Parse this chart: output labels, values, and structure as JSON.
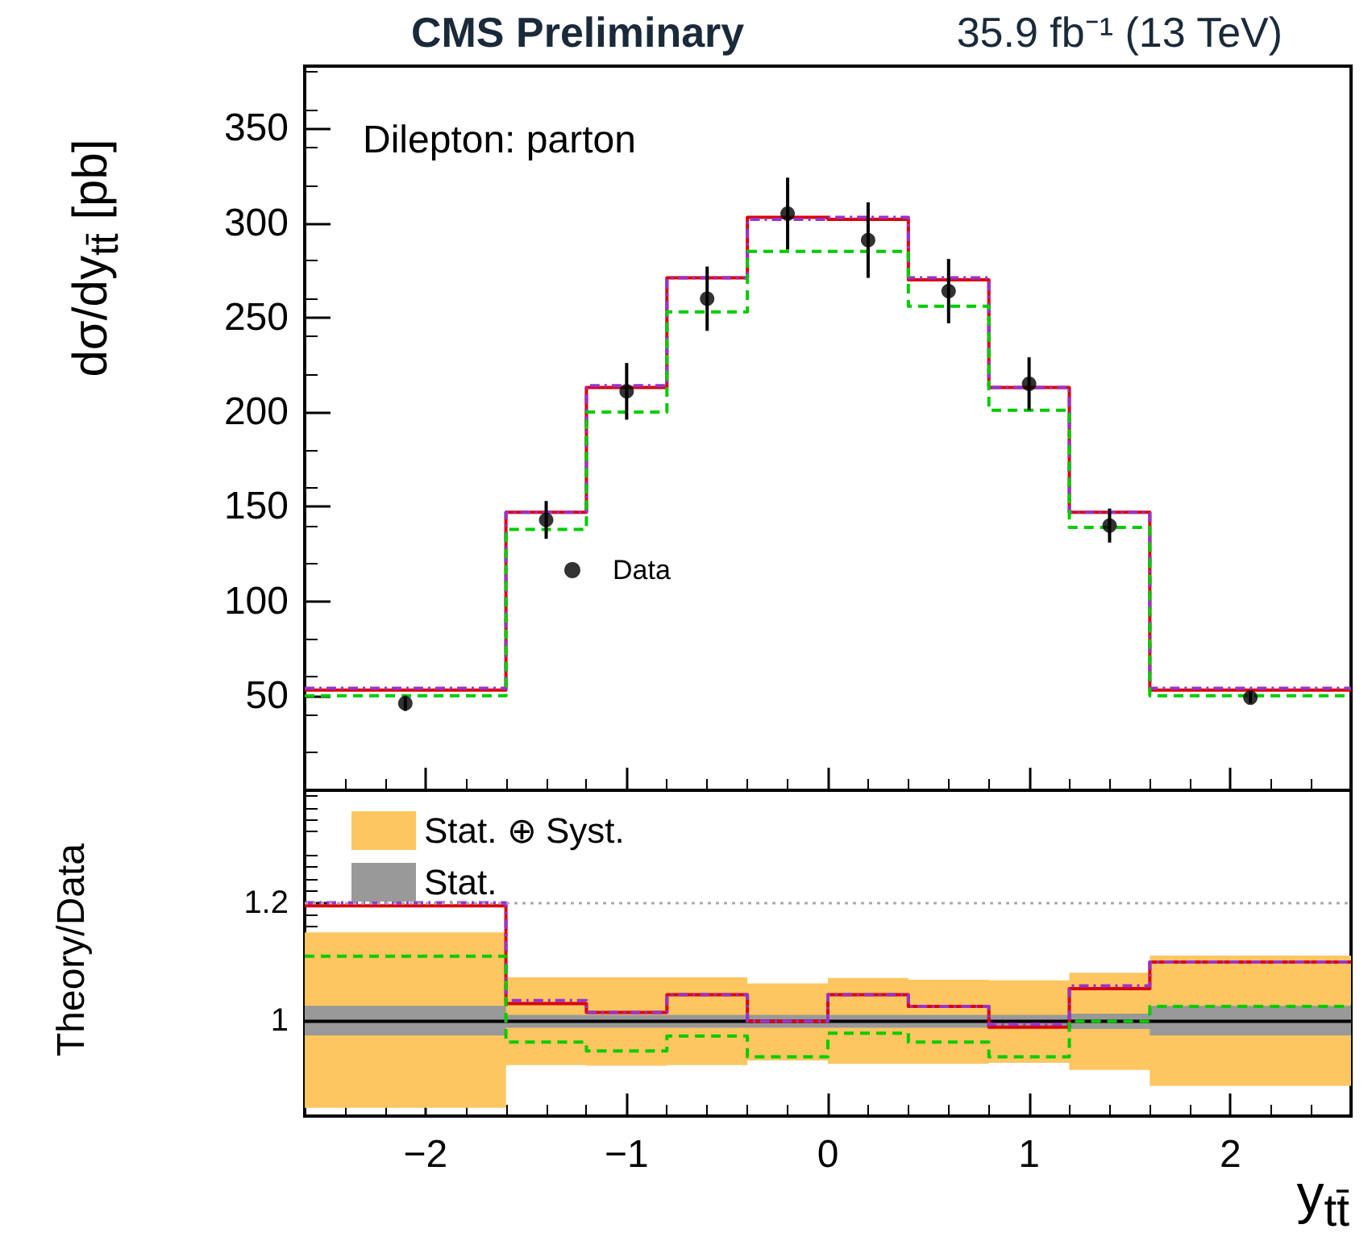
{
  "chart_data": [
    {
      "type": "scatter",
      "title": "CMS Preliminary",
      "subtitle": "35.9 fb⁻¹ (13 TeV)",
      "ylabel": "dσ/dy$_{tt̄}$ [pb]",
      "annotations": [
        "Dilepton: parton"
      ],
      "x": [
        -2.1,
        -1.4,
        -1.0,
        -0.6,
        -0.2,
        0.2,
        0.6,
        1.0,
        1.4,
        2.1
      ],
      "series": [
        {
          "name": "Data",
          "color": "#000000",
          "marker": "circle",
          "values": [
            46,
            143,
            211,
            260,
            305,
            291,
            264,
            215,
            140,
            49
          ],
          "errors": [
            4,
            10,
            15,
            17,
            19,
            20,
            17,
            14,
            9,
            3
          ]
        },
        {
          "type": "step",
          "color": "#dd0000",
          "line_style": "solid",
          "x": [
            -2.6,
            -1.6,
            -1.2,
            -0.8,
            -0.4,
            0,
            0.4,
            0.8,
            1.2,
            1.6,
            2.6
          ],
          "values": [
            53,
            147,
            213,
            271,
            303,
            302,
            270,
            213,
            147,
            53,
            53
          ]
        },
        {
          "type": "step",
          "color": "#9933cc",
          "line_style": "dotted",
          "x": [
            -2.6,
            -1.6,
            -1.2,
            -0.8,
            -0.4,
            0,
            0.4,
            0.8,
            1.2,
            1.6,
            2.6
          ],
          "values": [
            54,
            147,
            214,
            271,
            302,
            303,
            271,
            213,
            147,
            54,
            54
          ]
        },
        {
          "type": "step",
          "color": "#00cc00",
          "line_style": "dashed",
          "x": [
            -2.6,
            -1.6,
            -1.2,
            -0.8,
            -0.4,
            0,
            0.4,
            0.8,
            1.2,
            1.6,
            2.6
          ],
          "values": [
            50,
            138,
            200,
            253,
            285,
            285,
            256,
            201,
            139,
            50,
            50
          ]
        }
      ],
      "xlim": [
        -2.6,
        2.6
      ],
      "xticks": [
        -2,
        -1,
        0,
        1,
        2
      ],
      "ylim": [
        0,
        383
      ],
      "yticks": [
        50,
        100,
        150,
        200,
        250,
        300,
        350
      ],
      "tick_labels": "y",
      "legend": "bottom",
      "grid": false
    },
    {
      "type": "step",
      "xlabel": "y$_{tt̄}$",
      "ylabel": "Theory/Data",
      "x": [
        -2.6,
        -1.6,
        -1.2,
        -0.8,
        -0.4,
        0,
        0.4,
        0.8,
        1.2,
        1.6,
        2.6
      ],
      "series": [
        {
          "name": "Stat. ⊕ Syst.",
          "color": "#fdc660",
          "values": [
            null,
            null,
            null,
            null,
            null,
            null,
            null,
            null,
            null,
            null,
            null
          ],
          "lower": [
            0.854,
            0.926,
            0.925,
            0.926,
            0.934,
            0.928,
            0.928,
            0.93,
            0.918,
            0.891,
            0.891
          ],
          "upper": [
            1.15,
            1.074,
            1.074,
            1.074,
            1.064,
            1.073,
            1.07,
            1.069,
            1.082,
            1.111,
            1.111
          ]
        },
        {
          "name": "Stat.",
          "color": "#999999",
          "values": [
            null,
            null,
            null,
            null,
            null,
            null,
            null,
            null,
            null,
            null,
            null
          ],
          "lower": [
            0.976,
            0.989,
            0.989,
            0.989,
            0.989,
            0.989,
            0.989,
            0.989,
            0.987,
            0.976,
            0.976
          ],
          "upper": [
            1.026,
            1.011,
            1.011,
            1.011,
            1.011,
            1.011,
            1.011,
            1.011,
            1.013,
            1.026,
            1.026
          ]
        },
        {
          "color": "#000000",
          "line_style": "solid",
          "values": [
            1,
            1,
            1,
            1,
            1,
            1,
            1,
            1,
            1,
            1,
            1
          ]
        },
        {
          "color": "#dd0000",
          "line_style": "solid",
          "values": [
            1.195,
            1.03,
            1.015,
            1.045,
            1.0,
            1.045,
            1.025,
            0.99,
            1.055,
            1.1,
            1.1
          ]
        },
        {
          "type": "step",
          "color": "#9933cc",
          "line_style": "dotted",
          "values": [
            1.2,
            1.035,
            1.015,
            1.045,
            1.0,
            1.045,
            1.025,
            0.995,
            1.06,
            1.1,
            1.1
          ]
        },
        {
          "type": "step",
          "color": "#00cc00",
          "line_style": "dashed",
          "values": [
            1.11,
            0.965,
            0.95,
            0.975,
            0.94,
            0.98,
            0.965,
            0.94,
            1.0,
            1.025,
            1.025
          ]
        }
      ],
      "ref_lines": [
        {
          "axis": "y",
          "value": 1.2,
          "color": "#aaaaaa",
          "line_style": "dotted"
        }
      ],
      "xlim": [
        -2.6,
        2.6
      ],
      "xticks": [
        -2,
        -1,
        0,
        1,
        2
      ],
      "ylim": [
        0.84,
        1.39
      ],
      "yticks": [
        1,
        1.2
      ],
      "legend": "top left",
      "grid": false
    }
  ]
}
